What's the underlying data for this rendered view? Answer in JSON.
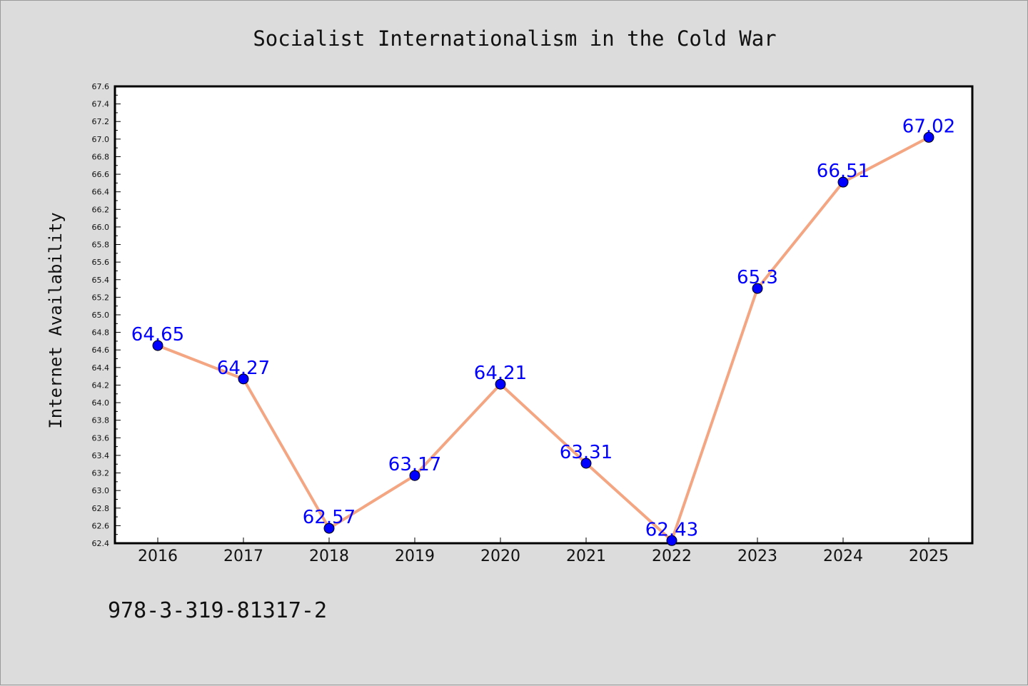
{
  "chart_data": {
    "type": "line",
    "title": "Socialist Internationalism in the Cold War",
    "xlabel": "",
    "ylabel": "Internet Availability",
    "categories": [
      "2016",
      "2017",
      "2018",
      "2019",
      "2020",
      "2021",
      "2022",
      "2023",
      "2024",
      "2025"
    ],
    "series": [
      {
        "values": [
          64.65,
          64.27,
          62.57,
          63.17,
          64.21,
          63.31,
          62.43,
          65.3,
          66.51,
          67.02
        ],
        "labels": [
          "64.65",
          "64.27",
          "62.57",
          "63.17",
          "64.21",
          "63.31",
          "62.43",
          "65.3",
          "66.51",
          "67.02"
        ],
        "line_color": "#f4a582",
        "marker_color": "#0000ff"
      }
    ],
    "ylim": [
      62.4,
      67.6
    ],
    "yticks": [
      "62.4",
      "62.6",
      "62.8",
      "63.0",
      "63.2",
      "63.4",
      "63.6",
      "63.8",
      "64.0",
      "64.2",
      "64.4",
      "64.6",
      "64.8",
      "65.0",
      "65.2",
      "65.4",
      "65.6",
      "65.8",
      "66.0",
      "66.2",
      "66.4",
      "66.6",
      "66.8",
      "67.0",
      "67.2",
      "67.4",
      "67.6"
    ],
    "grid": false,
    "legend": "none"
  },
  "footer": {
    "isbn": "978-3-319-81317-2"
  }
}
